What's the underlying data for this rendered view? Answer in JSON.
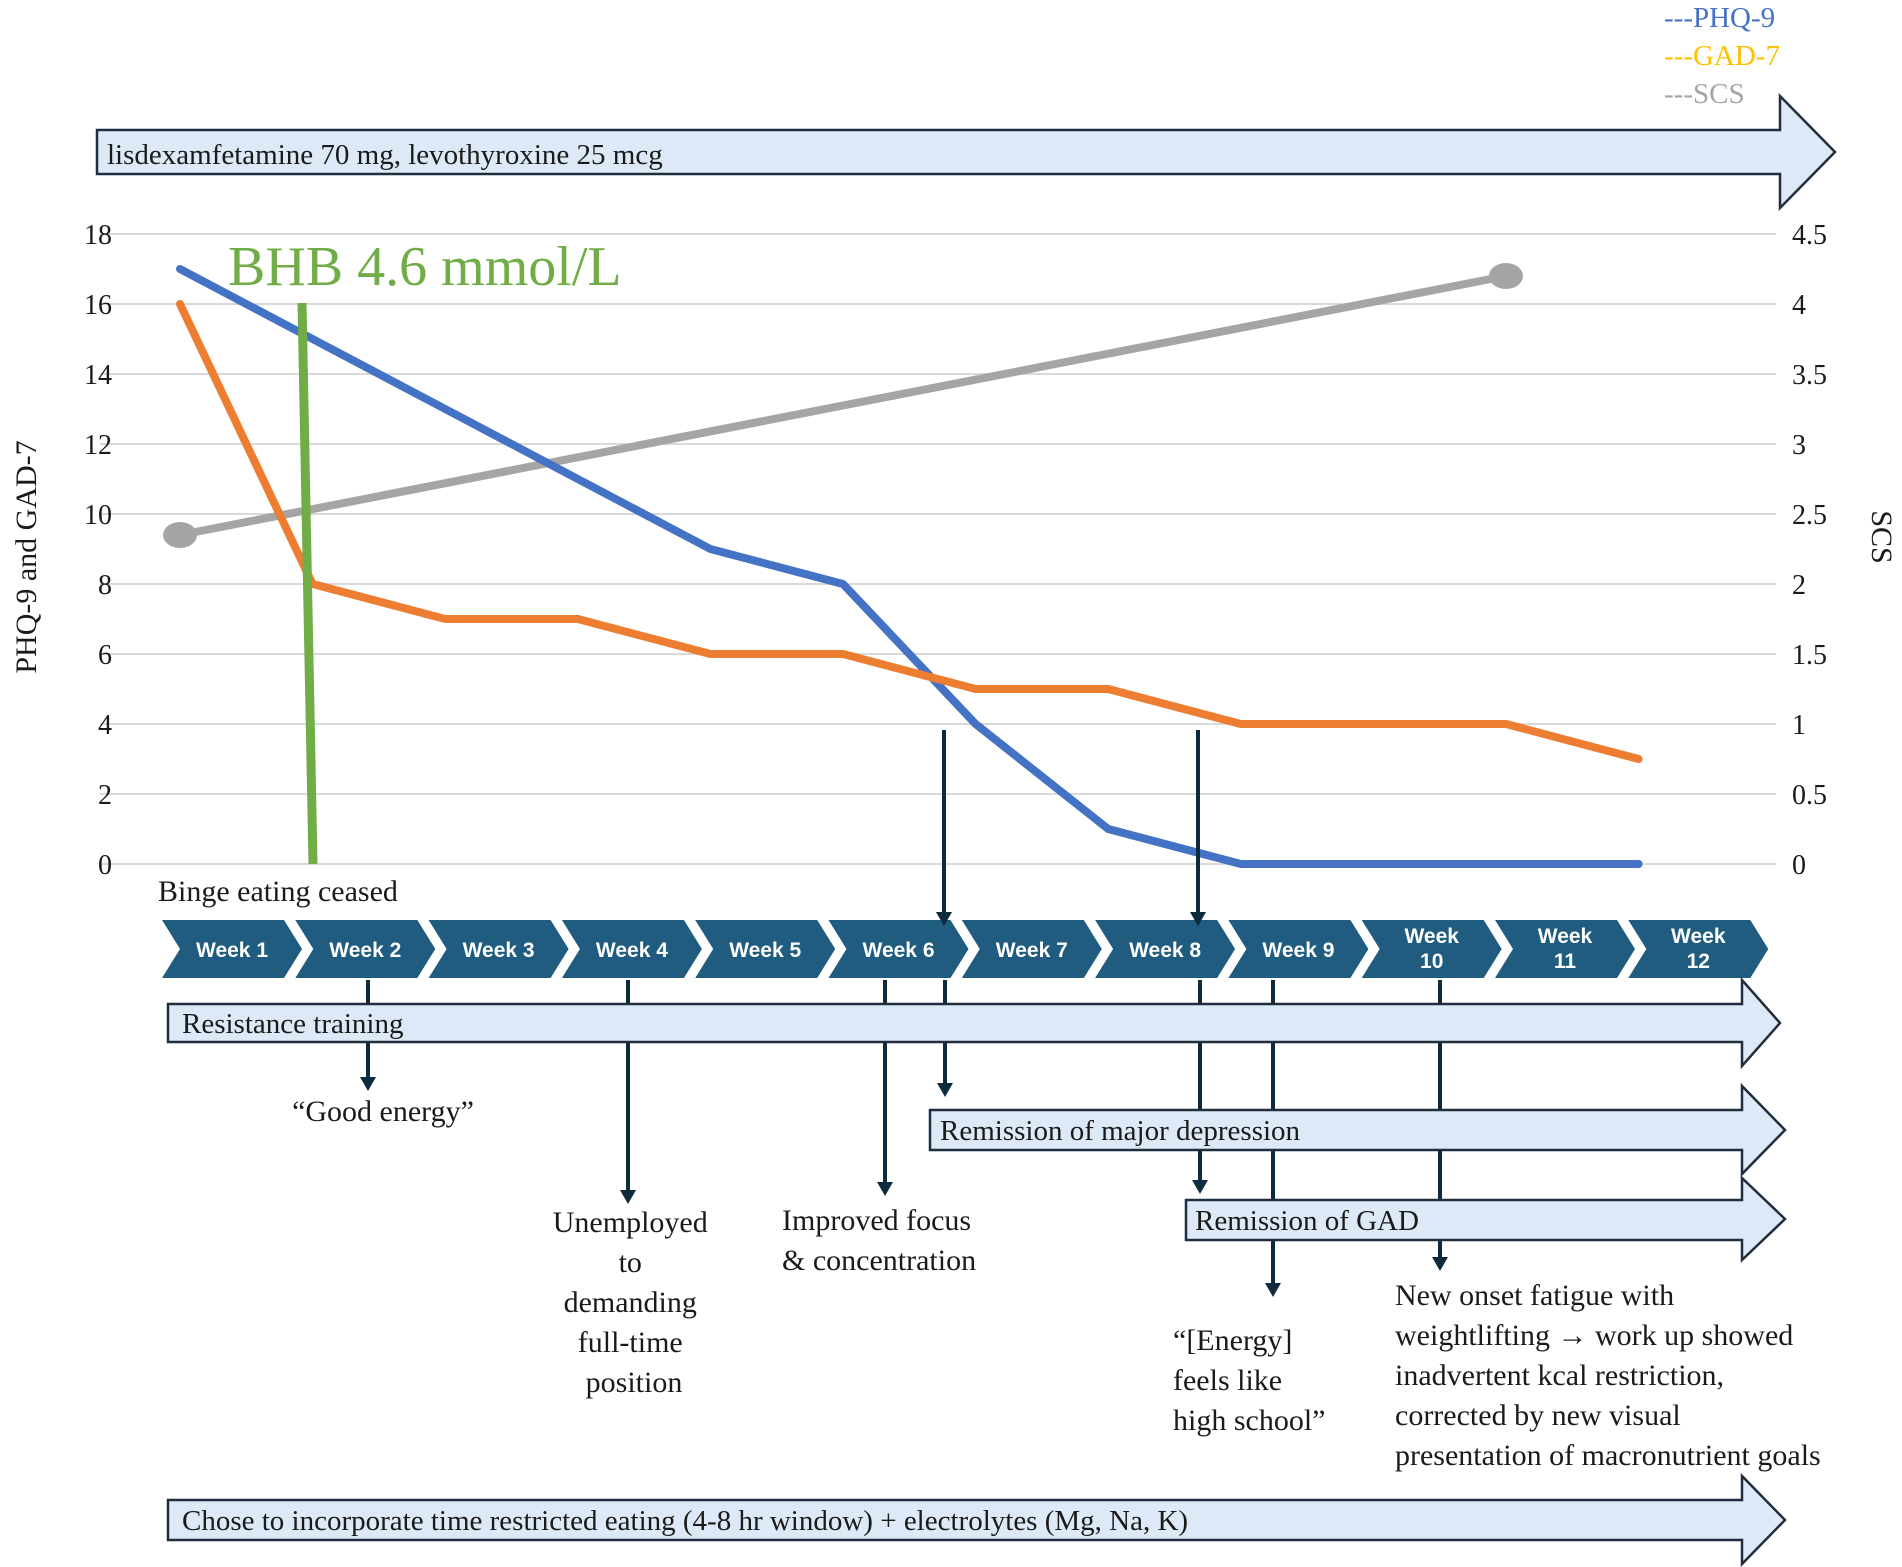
{
  "colors": {
    "phq9": "#4472c4",
    "gad7": "#ed7d31",
    "scs": "#a5a5a5",
    "bhb": "#70ad47",
    "chevron": "#1f5c7f",
    "band_fill": "#dde9f6",
    "connector": "#0e2a3d"
  },
  "legend": [
    {
      "label": "---PHQ-9",
      "color": "#4472c4"
    },
    {
      "label": "---GAD-7",
      "color": "#ffc000"
    },
    {
      "label": "---SCS",
      "color": "#a5a5a5"
    }
  ],
  "medication_label": "lisdexamfetamine 70 mg, levothyroxine 25 mcg",
  "bhb_label": "BHB 4.6 mmol/L",
  "binge_label": "Binge eating ceased",
  "weeks": [
    [
      "Week 1"
    ],
    [
      "Week 2"
    ],
    [
      "Week 3"
    ],
    [
      "Week 4"
    ],
    [
      "Week 5"
    ],
    [
      "Week 6"
    ],
    [
      "Week 7"
    ],
    [
      "Week 8"
    ],
    [
      "Week 9"
    ],
    [
      "Week",
      "10"
    ],
    [
      "Week",
      "11"
    ],
    [
      "Week",
      "12"
    ]
  ],
  "bands": {
    "resistance": "Resistance training",
    "remission_depression": "Remission of major depression",
    "remission_gad": "Remission of GAD",
    "tre": "Chose to incorporate time restricted eating (4-8 hr window) + electrolytes (Mg, Na, K)"
  },
  "annotations": {
    "good_energy": [
      "“Good energy”"
    ],
    "employment": [
      "Unemployed",
      "to",
      "demanding",
      "full-time",
      "position"
    ],
    "focus": [
      "Improved focus",
      "& concentration"
    ],
    "energy_hs": [
      "“[Energy]",
      "feels like",
      "high school”"
    ],
    "fatigue": [
      "New onset fatigue with",
      "weightlifting → work up showed",
      "inadvertent kcal restriction,",
      "corrected by new visual",
      "presentation of macronutrient goals"
    ]
  },
  "chart_data": {
    "type": "line",
    "x": [
      1,
      2,
      3,
      4,
      5,
      6,
      7,
      8,
      9,
      10,
      11,
      12
    ],
    "series": [
      {
        "name": "PHQ-9",
        "axis": "left",
        "values": [
          17,
          15,
          13,
          11,
          9,
          8,
          4,
          1,
          0,
          0,
          0,
          0
        ]
      },
      {
        "name": "GAD-7",
        "axis": "left",
        "values": [
          16,
          8,
          7,
          7,
          6,
          6,
          5,
          5,
          4,
          4,
          4,
          3
        ]
      },
      {
        "name": "SCS",
        "axis": "right",
        "x": [
          1,
          11
        ],
        "values": [
          2.35,
          4.2
        ]
      }
    ],
    "ylabel": "PHQ-9  and  GAD-7",
    "y2label": "SCS",
    "ylim": [
      0,
      18
    ],
    "y2lim": [
      0,
      4.5
    ],
    "yticks": [
      "0",
      "2",
      "4",
      "6",
      "8",
      "10",
      "12",
      "14",
      "16",
      "18"
    ],
    "y2ticks": [
      "0",
      "0.5",
      "1",
      "1.5",
      "2",
      "2.5",
      "3",
      "3.5",
      "4",
      "4.5"
    ],
    "grid": true,
    "legend_position": "top-right"
  }
}
